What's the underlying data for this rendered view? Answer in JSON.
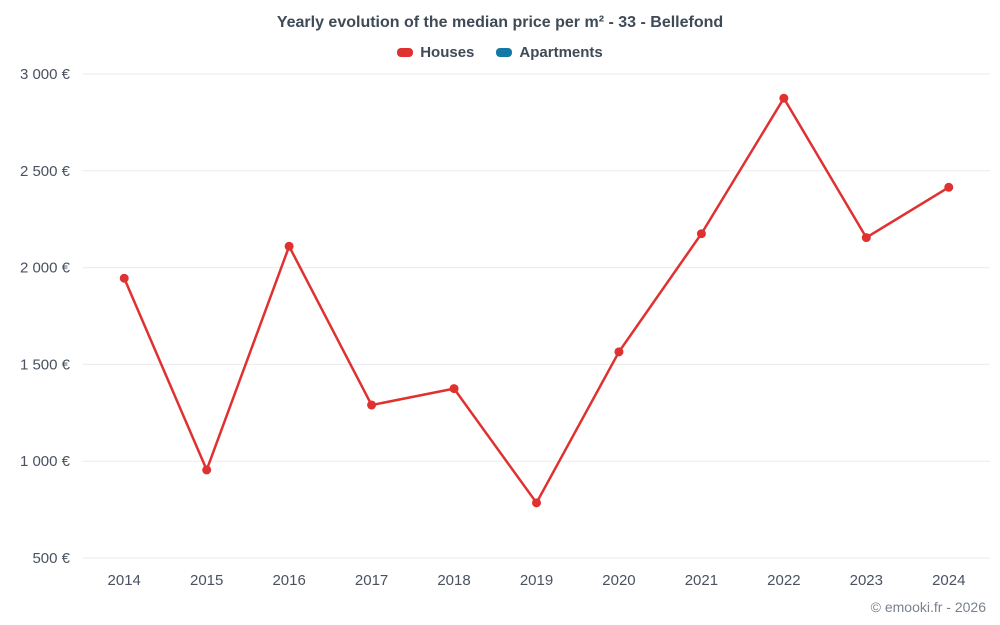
{
  "chart_data": {
    "type": "line",
    "title": "Yearly evolution of the median price per m² - 33 - Bellefond",
    "categories": [
      "2014",
      "2015",
      "2016",
      "2017",
      "2018",
      "2019",
      "2020",
      "2021",
      "2022",
      "2023",
      "2024"
    ],
    "series": [
      {
        "name": "Houses",
        "color": "#e03131",
        "values": [
          1945,
          955,
          2110,
          1290,
          1375,
          785,
          1565,
          2175,
          2875,
          2155,
          2415
        ]
      },
      {
        "name": "Apartments",
        "color": "#1379a5",
        "values": []
      }
    ],
    "xlabel": "",
    "ylabel": "",
    "ylim": [
      500,
      3000
    ],
    "yticks": [
      500,
      1000,
      1500,
      2000,
      2500,
      3000
    ],
    "ytick_labels": [
      "500 €",
      "1 000 €",
      "1 500 €",
      "2 000 €",
      "2 500 €",
      "3 000 €"
    ],
    "grid": "horizontal",
    "gridline_color": "#e9ebee",
    "legend_position": "top"
  },
  "footer": {
    "credit": "© emooki.fr - 2026"
  }
}
